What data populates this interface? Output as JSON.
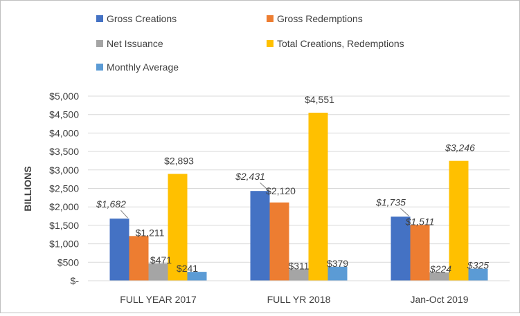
{
  "chart_data": {
    "type": "bar",
    "title": "",
    "xlabel": "",
    "ylabel": "BILLIONS",
    "ylim": [
      0,
      5000
    ],
    "yticks": [
      0,
      500,
      1000,
      1500,
      2000,
      2500,
      3000,
      3500,
      4000,
      4500,
      5000
    ],
    "ytick_labels": [
      "$-",
      "$500",
      "$1,000",
      "$1,500",
      "$2,000",
      "$2,500",
      "$3,000",
      "$3,500",
      "$4,000",
      "$4,500",
      "$5,000"
    ],
    "grid": true,
    "legend": "top",
    "categories": [
      "FULL YEAR 2017",
      "FULL YR 2018",
      "Jan-Oct 2019"
    ],
    "series": [
      {
        "name": "Gross Creations",
        "color": "#4472c4",
        "values": [
          1682,
          2431,
          1735
        ],
        "labels": [
          "$1,682",
          "$2,431",
          "$1,735"
        ],
        "label_style": [
          "italic",
          "italic",
          "italic"
        ]
      },
      {
        "name": "Gross Redemptions",
        "color": "#ed7d31",
        "values": [
          1211,
          2120,
          1511
        ],
        "labels": [
          "$1,211",
          "$2,120",
          "$1,511"
        ],
        "label_style": [
          "normal",
          "normal",
          "italic"
        ]
      },
      {
        "name": "Net Issuance",
        "color": "#a5a5a5",
        "values": [
          471,
          311,
          224
        ],
        "labels": [
          "$471",
          "$311",
          "$224"
        ],
        "label_style": [
          "normal",
          "normal",
          "italic"
        ]
      },
      {
        "name": "Total Creations, Redemptions",
        "color": "#ffc000",
        "values": [
          2893,
          4551,
          3246
        ],
        "labels": [
          "$2,893",
          "$4,551",
          "$3,246"
        ],
        "label_style": [
          "normal",
          "normal",
          "italic"
        ]
      },
      {
        "name": "Monthly Average",
        "color": "#5b9bd5",
        "values": [
          241,
          379,
          325
        ],
        "labels": [
          "$241",
          "$379",
          "$325"
        ],
        "label_style": [
          "normal",
          "normal",
          "italic"
        ]
      }
    ]
  }
}
